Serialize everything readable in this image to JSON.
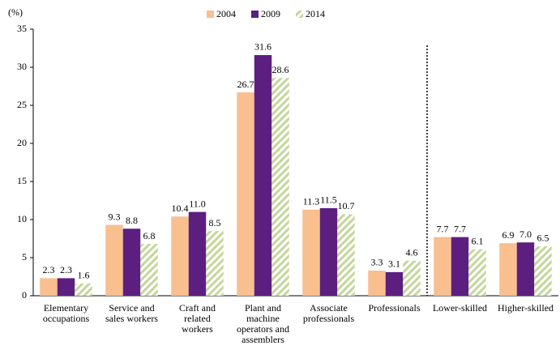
{
  "chart_data": {
    "type": "bar",
    "y_label": "(%)",
    "categories": [
      [
        "Elementary",
        "occupations"
      ],
      [
        "Service and",
        "sales workers"
      ],
      [
        "Craft and",
        "related",
        "workers"
      ],
      [
        "Plant and",
        "machine",
        "operators and",
        "assemblers"
      ],
      [
        "Associate",
        "professionals"
      ],
      [
        "Professionals"
      ],
      [
        "Lower-skilled"
      ],
      [
        "Higher-skilled"
      ]
    ],
    "series": [
      {
        "name": "2004",
        "color": "#f9bf8f",
        "values": [
          2.3,
          9.3,
          10.4,
          26.7,
          11.3,
          3.3,
          7.7,
          6.9
        ],
        "value_labels": [
          "2.3",
          "9.3",
          "10.4",
          "26.7",
          "11.3",
          "3.3",
          "7.7",
          "6.9"
        ]
      },
      {
        "name": "2009",
        "color": "#5c1f80",
        "values": [
          2.3,
          8.8,
          11.0,
          31.6,
          11.5,
          3.1,
          7.7,
          7.0
        ],
        "value_labels": [
          "2.3",
          "8.8",
          "11.0",
          "31.6",
          "11.5",
          "3.1",
          "7.7",
          "7.0"
        ]
      },
      {
        "name": "2014",
        "color": "#c4d79b",
        "hatch": true,
        "values": [
          1.6,
          6.8,
          8.5,
          28.6,
          10.7,
          4.6,
          6.1,
          6.5
        ],
        "value_labels": [
          "1.6",
          "6.8",
          "8.5",
          "28.6",
          "10.7",
          "4.6",
          "6.1",
          "6.5"
        ]
      }
    ],
    "ylim": [
      0,
      35
    ],
    "yticks": [
      0,
      5,
      10,
      15,
      20,
      25,
      30,
      35
    ],
    "grid": false,
    "legend": "top"
  }
}
